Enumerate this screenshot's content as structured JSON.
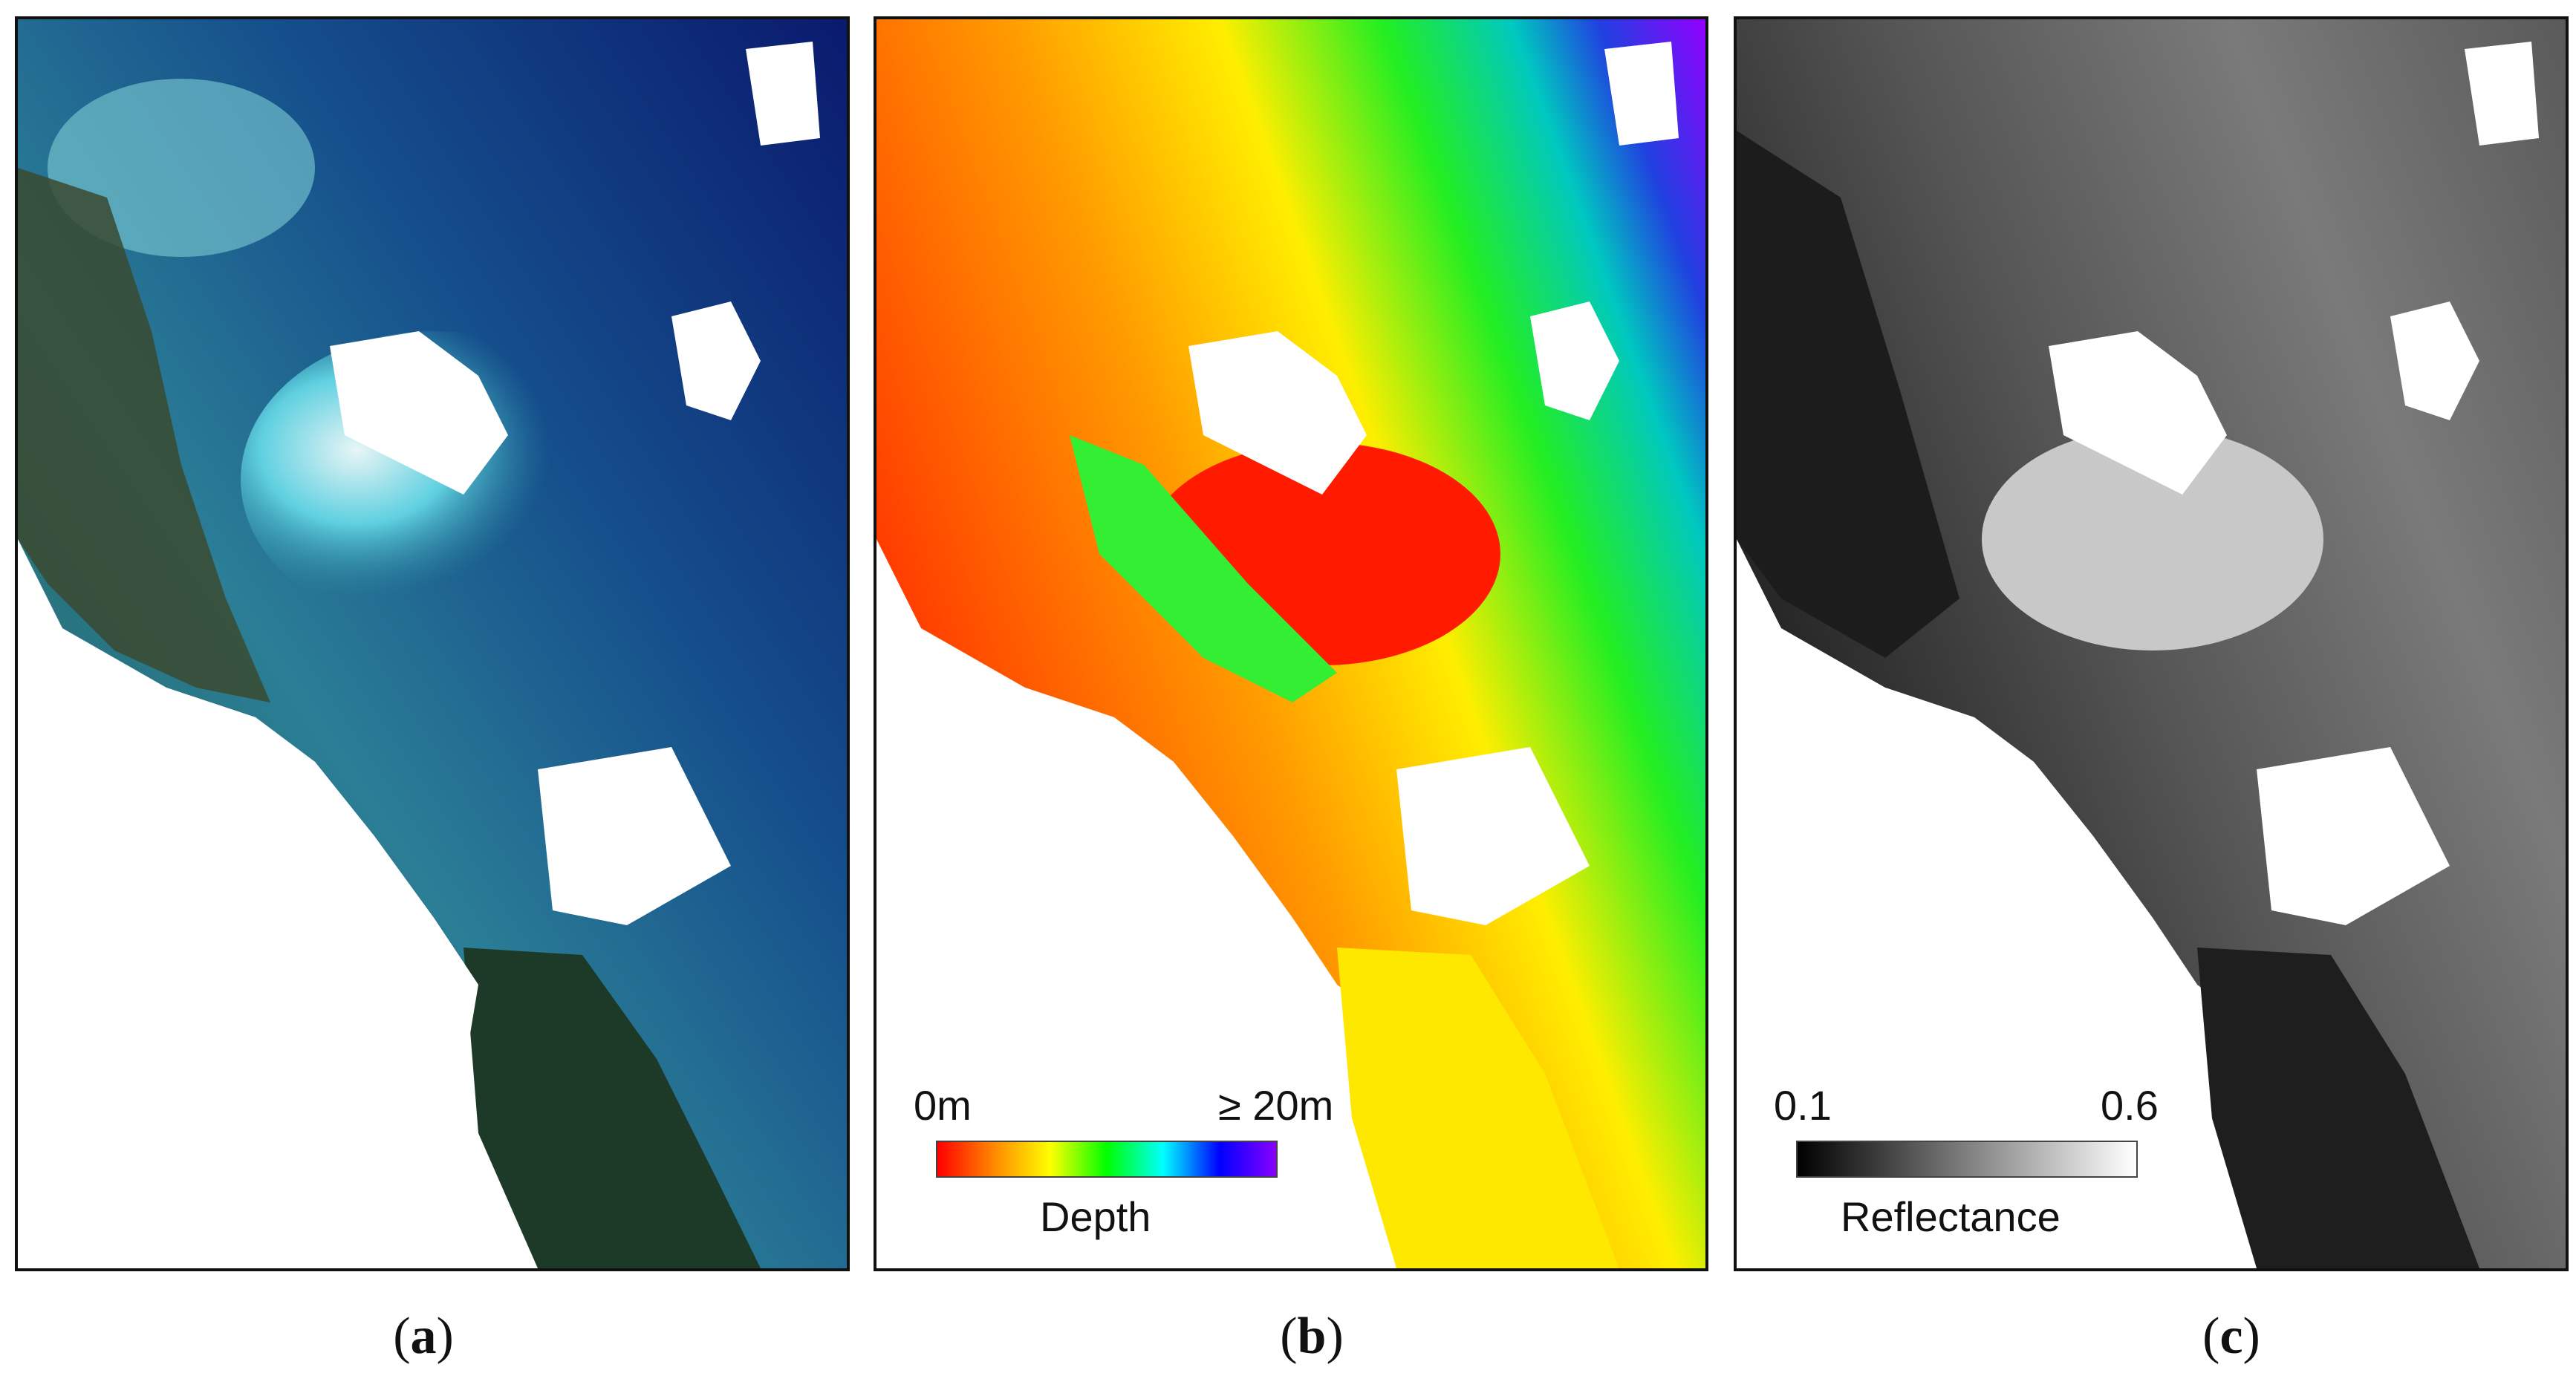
{
  "panels": [
    {
      "id": "a",
      "label_open": "(",
      "label_letter": "a",
      "label_close": ")"
    },
    {
      "id": "b",
      "label_open": "(",
      "label_letter": "b",
      "label_close": ")"
    },
    {
      "id": "c",
      "label_open": "(",
      "label_letter": "c",
      "label_close": ")"
    }
  ],
  "depth_legend": {
    "min_label": "0m",
    "max_label": "≥ 20m",
    "title": "Depth",
    "colors": [
      "#ff0000",
      "#ff8800",
      "#ffff00",
      "#00ff00",
      "#00ffff",
      "#0000ff",
      "#8800ff"
    ]
  },
  "reflectance_legend": {
    "min_label": "0.1",
    "max_label": "0.6",
    "title": "Reflectance",
    "colors": [
      "#000000",
      "#ffffff"
    ]
  }
}
